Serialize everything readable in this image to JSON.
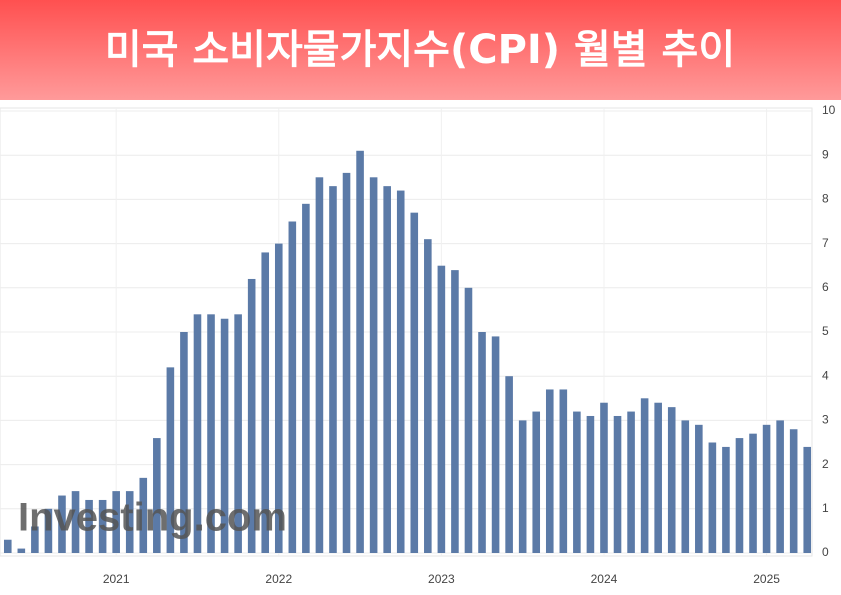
{
  "chart_data": {
    "type": "bar",
    "title": "미국 소비자물가지수(CPI) 월별 추이",
    "watermark": "Investing.com",
    "categories": [
      null,
      null,
      null,
      null,
      null,
      null,
      null,
      null,
      "2021",
      null,
      null,
      null,
      null,
      null,
      null,
      null,
      null,
      null,
      null,
      null,
      "2022",
      null,
      null,
      null,
      null,
      null,
      null,
      null,
      null,
      null,
      null,
      null,
      "2023",
      null,
      null,
      null,
      null,
      null,
      null,
      null,
      null,
      null,
      null,
      null,
      "2024",
      null,
      null,
      null,
      null,
      null,
      null,
      null,
      null,
      null,
      null,
      null,
      "2025",
      null,
      null,
      null
    ],
    "values": [
      0.3,
      0.1,
      0.6,
      1.0,
      1.3,
      1.4,
      1.2,
      1.2,
      1.4,
      1.4,
      1.7,
      2.6,
      4.2,
      5.0,
      5.4,
      5.4,
      5.3,
      5.4,
      6.2,
      6.8,
      7.0,
      7.5,
      7.9,
      8.5,
      8.3,
      8.6,
      9.1,
      8.5,
      8.3,
      8.2,
      7.7,
      7.1,
      6.5,
      6.4,
      6.0,
      5.0,
      4.9,
      4.0,
      3.0,
      3.2,
      3.7,
      3.7,
      3.2,
      3.1,
      3.4,
      3.1,
      3.2,
      3.5,
      3.4,
      3.3,
      3.0,
      2.9,
      2.5,
      2.4,
      2.6,
      2.7,
      2.9,
      3.0,
      2.8,
      2.4
    ],
    "color": "#5b7aa7",
    "ylim": [
      0,
      10
    ],
    "yticks": [
      0,
      1,
      2,
      3,
      4,
      5,
      6,
      7,
      8,
      9,
      10
    ],
    "grid": true
  }
}
